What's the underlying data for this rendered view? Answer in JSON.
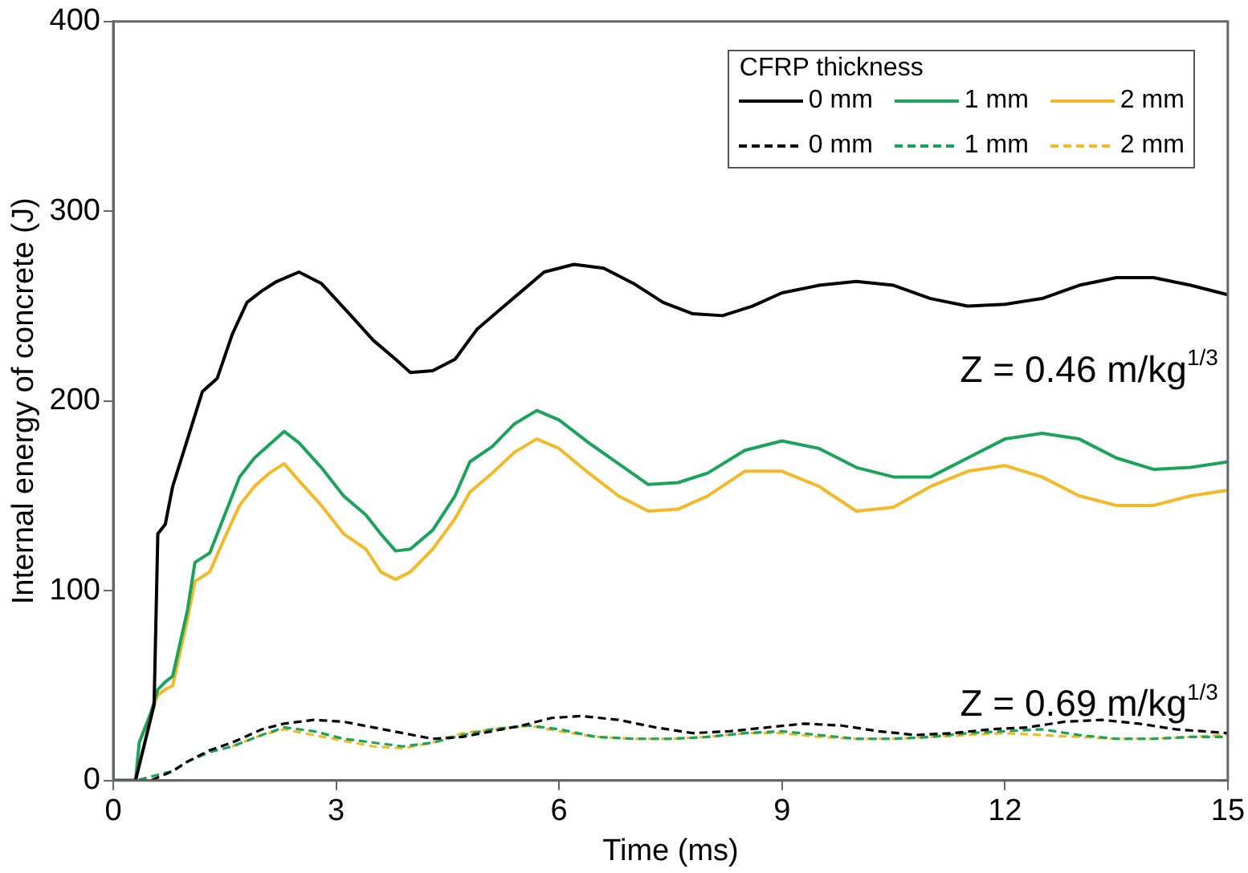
{
  "chart_data": {
    "type": "line",
    "xlabel": "Time (ms)",
    "ylabel": "Internal energy of concrete (J)",
    "legend_title": "CFRP thickness",
    "legend": "top right",
    "grid": false,
    "marker": "none",
    "xlim": [
      0,
      15
    ],
    "xticks": [
      0,
      3,
      6,
      9,
      12,
      15
    ],
    "ylim": [
      0,
      400
    ],
    "yticks": [
      0,
      100,
      200,
      300,
      400
    ],
    "annotations": [
      "Z = 0.46 m/kg$^{1/3}$",
      "Z = 0.69 m/kg$^{1/3}$"
    ],
    "series": [
      {
        "name": "0 mm",
        "color": "#000000",
        "line_style": "solid",
        "x": [
          0,
          0.3,
          0.55,
          0.6,
          0.7,
          0.8,
          1.0,
          1.2,
          1.4,
          1.6,
          1.8,
          2.0,
          2.2,
          2.5,
          2.8,
          3.2,
          3.5,
          3.8,
          4.0,
          4.3,
          4.6,
          4.9,
          5.2,
          5.5,
          5.8,
          6.2,
          6.6,
          7.0,
          7.4,
          7.8,
          8.2,
          8.6,
          9.0,
          9.5,
          10.0,
          10.5,
          11.0,
          11.5,
          12.0,
          12.5,
          13.0,
          13.5,
          14.0,
          14.5,
          15
        ],
        "values": [
          0,
          0,
          40,
          130,
          135,
          155,
          180,
          205,
          212,
          235,
          252,
          258,
          263,
          268,
          262,
          245,
          232,
          222,
          215,
          216,
          222,
          238,
          248,
          258,
          268,
          272,
          270,
          262,
          252,
          246,
          245,
          250,
          257,
          261,
          263,
          261,
          254,
          250,
          251,
          254,
          261,
          265,
          265,
          261,
          256
        ]
      },
      {
        "name": "1 mm",
        "color": "#1aa35a",
        "line_style": "solid",
        "x": [
          0,
          0.3,
          0.35,
          0.5,
          0.6,
          0.7,
          0.8,
          1.0,
          1.1,
          1.3,
          1.5,
          1.7,
          1.9,
          2.1,
          2.3,
          2.5,
          2.8,
          3.1,
          3.4,
          3.6,
          3.8,
          4.0,
          4.3,
          4.6,
          4.8,
          5.1,
          5.4,
          5.7,
          6.0,
          6.4,
          6.8,
          7.2,
          7.6,
          8.0,
          8.5,
          9.0,
          9.5,
          10.0,
          10.5,
          11.0,
          11.5,
          12.0,
          12.5,
          13.0,
          13.5,
          14.0,
          14.5,
          15
        ],
        "values": [
          0,
          0,
          20,
          35,
          48,
          52,
          55,
          90,
          115,
          120,
          140,
          160,
          170,
          177,
          184,
          178,
          165,
          150,
          140,
          130,
          121,
          122,
          132,
          150,
          168,
          176,
          188,
          195,
          190,
          178,
          167,
          156,
          157,
          162,
          174,
          179,
          175,
          165,
          160,
          160,
          170,
          180,
          183,
          180,
          170,
          164,
          165,
          168
        ]
      },
      {
        "name": "2 mm",
        "color": "#f5b928",
        "line_style": "solid",
        "x": [
          0.35,
          0.6,
          0.7,
          0.8,
          1.0,
          1.1,
          1.3,
          1.5,
          1.7,
          1.9,
          2.1,
          2.3,
          2.5,
          2.8,
          3.1,
          3.4,
          3.6,
          3.8,
          4.0,
          4.3,
          4.6,
          4.8,
          5.1,
          5.4,
          5.7,
          6.0,
          6.4,
          6.8,
          7.2,
          7.6,
          8.0,
          8.5,
          9.0,
          9.5,
          10.0,
          10.5,
          11.0,
          11.5,
          12.0,
          12.5,
          13.0,
          13.5,
          14.0,
          14.5,
          15
        ],
        "values": [
          20,
          45,
          48,
          50,
          85,
          105,
          110,
          128,
          145,
          155,
          162,
          167,
          158,
          145,
          130,
          122,
          110,
          106,
          110,
          122,
          138,
          152,
          162,
          173,
          180,
          175,
          162,
          150,
          142,
          143,
          150,
          163,
          163,
          155,
          142,
          144,
          155,
          163,
          166,
          160,
          150,
          145,
          145,
          150,
          153
        ]
      },
      {
        "name": "0 mm",
        "color": "#000000",
        "line_style": "dashed",
        "x": [
          0,
          0.5,
          0.8,
          1.0,
          1.3,
          1.6,
          2.0,
          2.3,
          2.7,
          3.1,
          3.5,
          3.9,
          4.3,
          4.7,
          5.1,
          5.5,
          5.9,
          6.3,
          6.8,
          7.3,
          7.8,
          8.3,
          8.8,
          9.3,
          9.8,
          10.3,
          10.8,
          11.3,
          11.8,
          12.3,
          12.8,
          13.3,
          13.8,
          14.3,
          15
        ],
        "values": [
          0,
          0,
          5,
          10,
          16,
          20,
          27,
          30,
          32,
          31,
          28,
          25,
          22,
          23,
          26,
          29,
          33,
          34,
          32,
          28,
          25,
          26,
          28,
          30,
          29,
          26,
          24,
          25,
          27,
          28,
          31,
          32,
          30,
          27,
          25
        ]
      },
      {
        "name": "1 mm",
        "color": "#1aa35a",
        "line_style": "dashed",
        "x": [
          0,
          0.3,
          0.5,
          0.8,
          1.0,
          1.3,
          1.6,
          2.0,
          2.3,
          2.7,
          3.1,
          3.5,
          3.9,
          4.3,
          4.7,
          5.1,
          5.6,
          6.0,
          6.5,
          7.0,
          7.5,
          8.0,
          8.5,
          9.0,
          9.5,
          10.0,
          10.5,
          11.0,
          11.5,
          12.0,
          12.5,
          13.0,
          13.5,
          14.0,
          14.5,
          15
        ],
        "values": [
          0,
          0,
          2,
          5,
          10,
          15,
          18,
          24,
          28,
          26,
          22,
          20,
          18,
          20,
          24,
          27,
          29,
          27,
          23,
          22,
          22,
          23,
          25,
          26,
          24,
          22,
          22,
          23,
          25,
          26,
          27,
          24,
          22,
          22,
          23,
          23
        ]
      },
      {
        "name": "2 mm",
        "color": "#f5b928",
        "line_style": "dashed",
        "x": [
          1.6,
          2.0,
          2.3,
          2.7,
          3.1,
          3.5,
          3.9,
          4.3,
          4.7,
          5.1,
          5.6,
          6.0,
          6.5,
          7.0,
          7.5,
          8.0,
          8.5,
          9.0,
          9.5,
          10.0,
          10.5,
          11.0,
          11.5,
          12.0,
          12.5,
          13.0,
          13.5,
          14.0,
          14.5,
          15
        ],
        "values": [
          18,
          24,
          27,
          24,
          21,
          18,
          17,
          20,
          25,
          27,
          29,
          26,
          23,
          22,
          22,
          23,
          25,
          25,
          23,
          22,
          22,
          23,
          24,
          25,
          24,
          23,
          22,
          22,
          23,
          24
        ]
      }
    ]
  }
}
